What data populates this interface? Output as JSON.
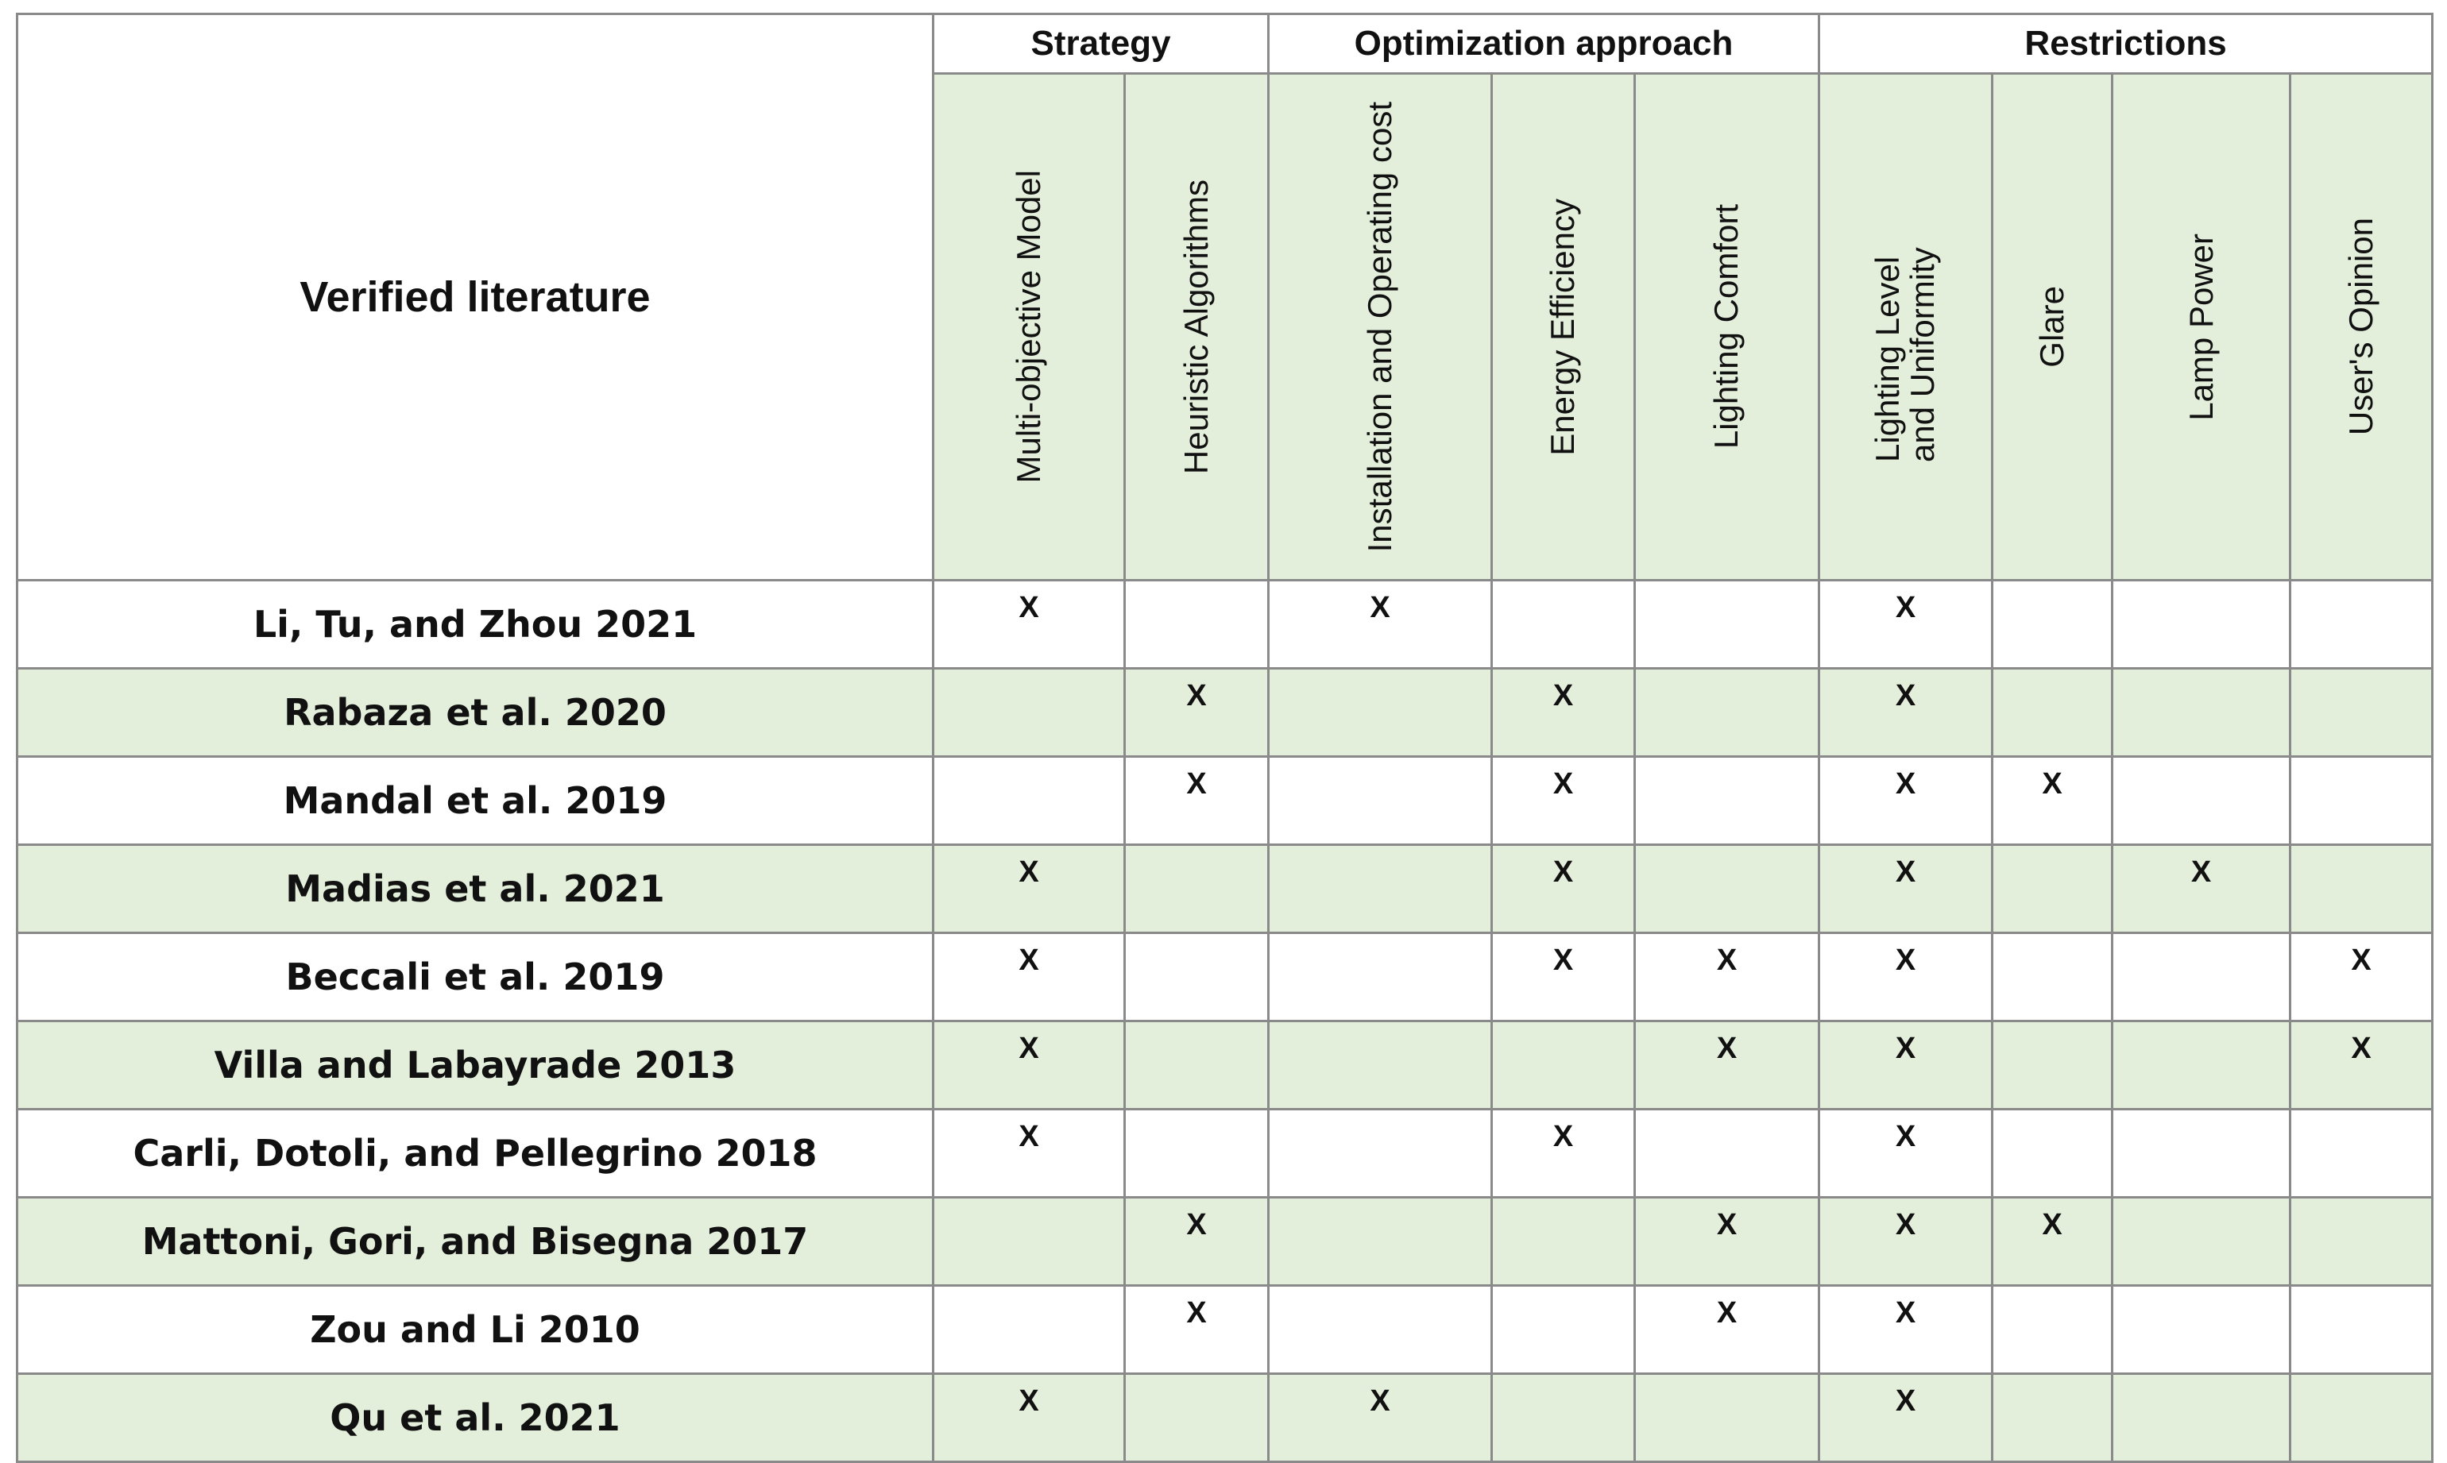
{
  "table": {
    "corner": "Verified literature",
    "groups": [
      "Strategy",
      "Optimization approach",
      "Restrictions"
    ],
    "columns": [
      "Multi-objective Model",
      "Heuristic Algorithms",
      "Installation and Operating cost",
      "Energy Efficiency",
      "Lighting Comfort",
      "Lighting Level and Uniformity",
      "Glare",
      "Lamp Power",
      "User's Opinion"
    ],
    "rows": [
      {
        "label": "Li, Tu, and Zhou 2021",
        "cells": [
          "X",
          null,
          "X",
          null,
          null,
          "X",
          null,
          null,
          null
        ]
      },
      {
        "label": "Rabaza et al. 2020",
        "cells": [
          null,
          "X",
          null,
          "X",
          null,
          "X",
          null,
          null,
          null
        ]
      },
      {
        "label": "Mandal et al. 2019",
        "cells": [
          null,
          "X",
          null,
          "X",
          null,
          "X",
          "X",
          null,
          null
        ]
      },
      {
        "label": "Madias et al. 2021",
        "cells": [
          "X",
          null,
          null,
          "X",
          null,
          "X",
          null,
          "X",
          null
        ]
      },
      {
        "label": "Beccali et al. 2019",
        "cells": [
          "X",
          null,
          null,
          "X",
          "X",
          "X",
          null,
          null,
          "X"
        ]
      },
      {
        "label": "Villa and Labayrade 2013",
        "cells": [
          "X",
          null,
          null,
          null,
          "X",
          "X",
          null,
          null,
          "X"
        ]
      },
      {
        "label": "Carli, Dotoli, and Pellegrino 2018",
        "cells": [
          "X",
          null,
          null,
          "X",
          null,
          "X",
          null,
          null,
          null
        ]
      },
      {
        "label": "Mattoni, Gori, and Bisegna 2017",
        "cells": [
          null,
          "X",
          null,
          null,
          "X",
          "X",
          "X",
          null,
          null
        ]
      },
      {
        "label": "Zou and Li 2010",
        "cells": [
          null,
          "X",
          null,
          null,
          "X",
          "X",
          null,
          null,
          null
        ]
      },
      {
        "label": "Qu et al. 2021",
        "cells": [
          "X",
          null,
          "X",
          null,
          null,
          "X",
          null,
          null,
          null
        ]
      }
    ]
  }
}
